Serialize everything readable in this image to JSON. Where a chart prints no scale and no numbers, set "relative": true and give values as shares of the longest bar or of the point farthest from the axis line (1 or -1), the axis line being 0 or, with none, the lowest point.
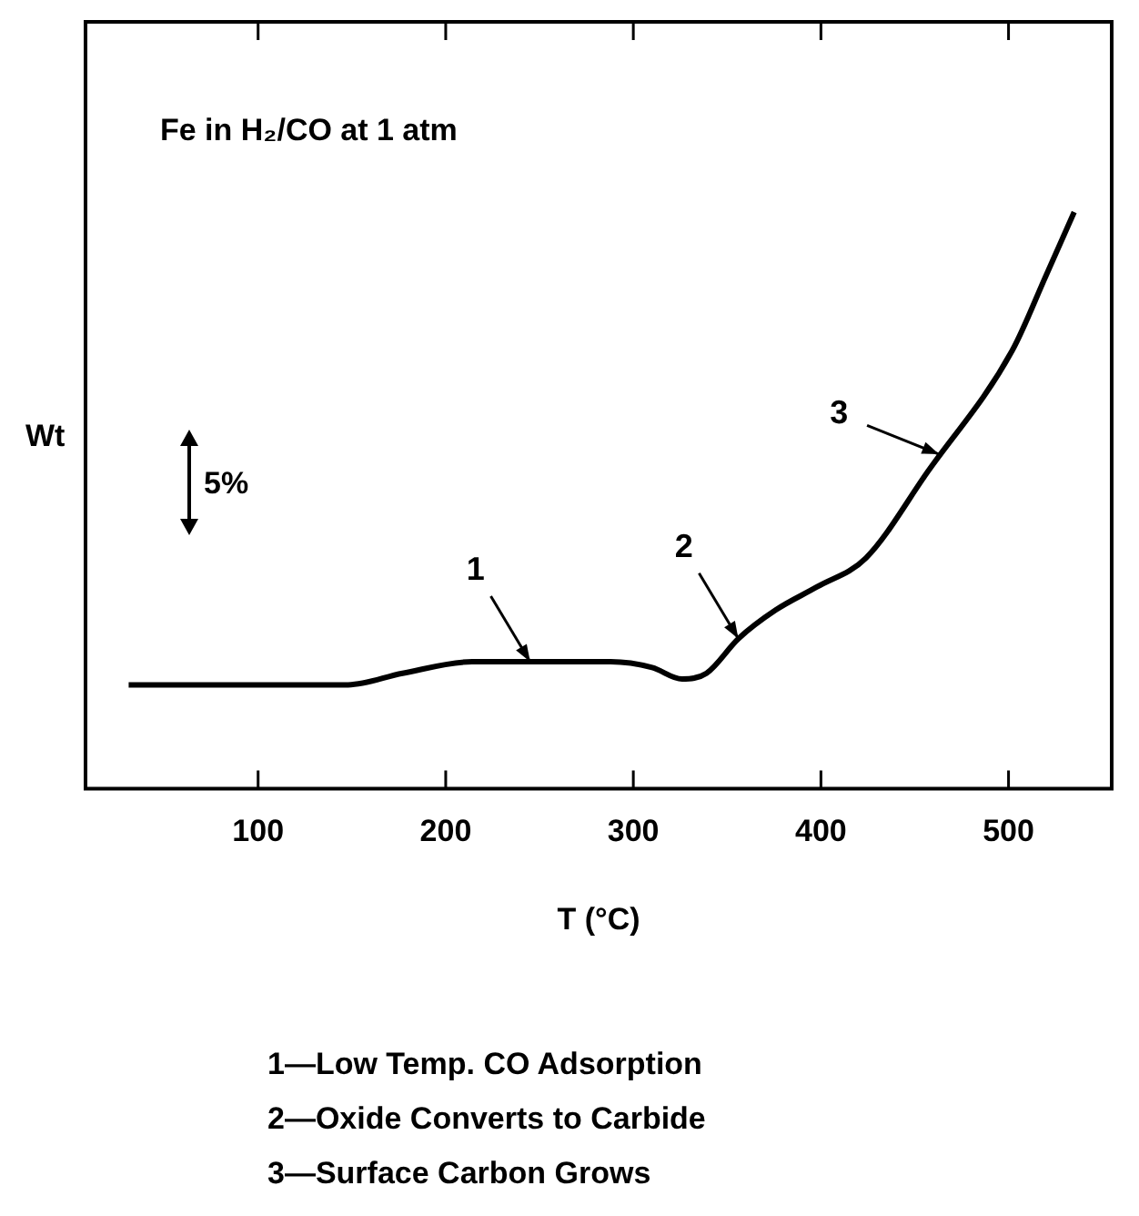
{
  "chart_data": {
    "type": "line",
    "relative": true,
    "xlabel": "T (°C)",
    "ylabel": "Wt",
    "color": "#000000",
    "marker": "none",
    "legend": false,
    "x": [
      31,
      148,
      177,
      214,
      251,
      288,
      310,
      326,
      339,
      356,
      376,
      398,
      424,
      457,
      502,
      520,
      535
    ],
    "values": [
      0.18,
      0.18,
      0.2,
      0.22,
      0.22,
      0.22,
      0.21,
      0.19,
      0.2,
      0.26,
      0.31,
      0.35,
      0.4,
      0.55,
      0.76,
      0.89,
      1
    ],
    "xlim": [
      8,
      555
    ],
    "xticks": [
      100,
      200,
      300,
      400,
      500
    ],
    "annotations": [
      {
        "text": "1",
        "x": 245,
        "y": 0.22
      },
      {
        "text": "2",
        "x": 356,
        "y": 0.26
      },
      {
        "text": "3",
        "x": 463,
        "y": 0.58
      },
      "Fe in H₂/CO at 1 atm",
      "5%",
      "1—Low Temp. CO Adsorption",
      "2—Oxide Converts to Carbide",
      "3—Surface Carbon Grows"
    ]
  }
}
